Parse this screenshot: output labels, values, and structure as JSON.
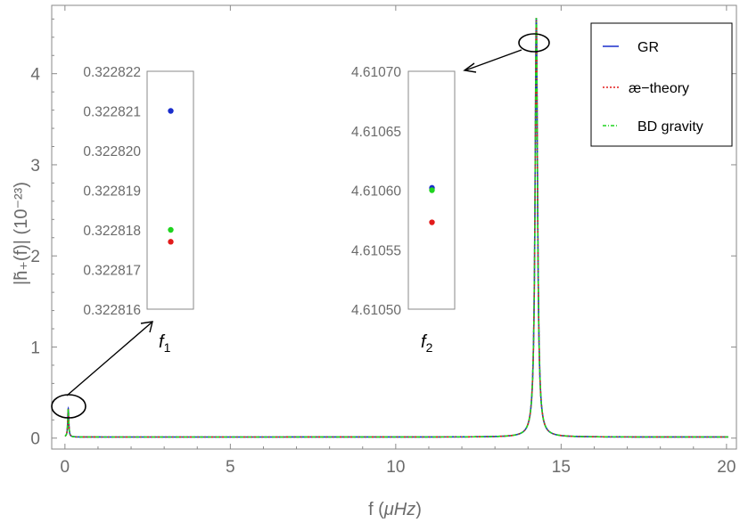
{
  "chart_data": {
    "type": "line",
    "xlabel_prefix": "f (",
    "xlabel_unit": "μHz",
    "xlabel_suffix": ")",
    "ylabel": "|h̃₊(f)| (10⁻²³)",
    "xlim": [
      -0.4,
      20.3
    ],
    "ylim": [
      -0.12,
      4.75
    ],
    "xticks": [
      "0",
      "5",
      "10",
      "15",
      "20"
    ],
    "yticks": [
      "0",
      "1",
      "2",
      "3",
      "4"
    ],
    "grid": false,
    "legend_position": "top-right",
    "colors": {
      "GR": "#1a2ecc",
      "ae": "#e21b1b",
      "BD": "#1fd41f",
      "axis": "#8a8a8a"
    },
    "series": [
      {
        "name": "GR",
        "peaks": [
          {
            "f": 0.1,
            "amp": 0.322821
          },
          {
            "f": 14.25,
            "amp": 4.610602
          }
        ]
      },
      {
        "name": "æ−theory",
        "peaks": [
          {
            "f": 0.1,
            "amp": 0.3228177
          },
          {
            "f": 14.25,
            "amp": 4.610573
          }
        ]
      },
      {
        "name": "BD gravity",
        "peaks": [
          {
            "f": 0.1,
            "amp": 0.322818
          },
          {
            "f": 14.25,
            "amp": 4.6106
          }
        ]
      }
    ],
    "insets": [
      {
        "name": "f1",
        "label_main": "f",
        "label_sub": "1",
        "ylim": [
          0.322816,
          0.322822
        ],
        "yticks": [
          "0.322822",
          "0.322821",
          "0.322820",
          "0.322819",
          "0.322818",
          "0.322817",
          "0.322816"
        ],
        "points": [
          {
            "series": "GR",
            "value": 0.322821
          },
          {
            "series": "BD gravity",
            "value": 0.322818
          },
          {
            "series": "æ−theory",
            "value": 0.3228177
          }
        ]
      },
      {
        "name": "f2",
        "label_main": "f",
        "label_sub": "2",
        "ylim": [
          4.6105,
          4.6107
        ],
        "yticks": [
          "4.61070",
          "4.61065",
          "4.61060",
          "4.61055",
          "4.61050"
        ],
        "points": [
          {
            "series": "GR",
            "value": 4.610602
          },
          {
            "series": "BD gravity",
            "value": 4.6106
          },
          {
            "series": "æ−theory",
            "value": 4.610573
          }
        ]
      }
    ]
  }
}
